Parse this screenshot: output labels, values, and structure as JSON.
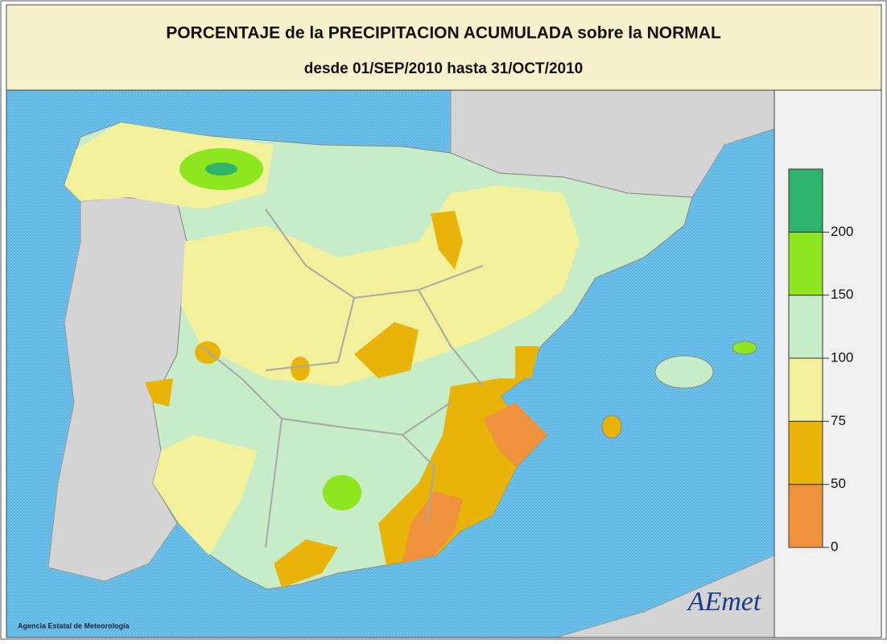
{
  "header": {
    "title": "PORCENTAJE de la PRECIPITACION ACUMULADA sobre la NORMAL",
    "subtitle": "desde 01/SEP/2010 hasta 31/OCT/2010"
  },
  "legend": {
    "ticks": [
      0,
      50,
      75,
      100,
      150,
      200
    ],
    "colors": [
      "#f0913c",
      "#e8b40a",
      "#f2f09a",
      "#c6ecc8",
      "#8ee61e",
      "#2eb36a"
    ]
  },
  "footer": {
    "credit": "Agencia Estatal de Meteorología",
    "logo": "AEmet"
  }
}
